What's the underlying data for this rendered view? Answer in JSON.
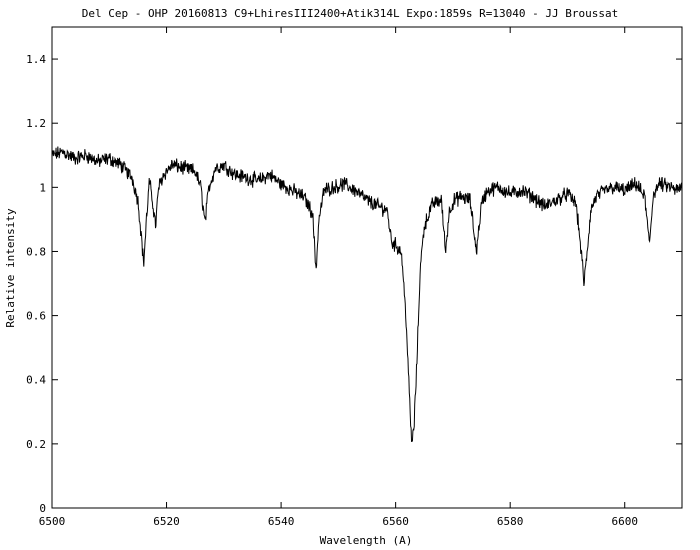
{
  "chart_data": {
    "type": "line",
    "title": "Del Cep -  OHP 20160813 C9+LhiresIII2400+Atik314L Expo:1859s R=13040  - JJ Broussat",
    "xlabel": "Wavelength (A)",
    "ylabel": "Relative intensity",
    "xlim": [
      6500,
      6610
    ],
    "ylim": [
      0,
      1.5
    ],
    "xticks": [
      "6500",
      "6520",
      "6540",
      "6560",
      "6580",
      "6600"
    ],
    "yticks": [
      "0",
      "0.2",
      "0.4",
      "0.6",
      "0.8",
      "1",
      "1.2",
      "1.4"
    ],
    "grid": false,
    "series": [
      {
        "color": "#000000",
        "x": [
          6500,
          6502,
          6504,
          6506,
          6508,
          6510,
          6512,
          6514,
          6515,
          6515.6,
          6516,
          6516.5,
          6517,
          6517.6,
          6518.1,
          6518.6,
          6519.5,
          6521,
          6523,
          6525,
          6526,
          6526.7,
          6527.4,
          6528.5,
          6530,
          6532,
          6534,
          6536,
          6538,
          6540,
          6542,
          6544,
          6545.5,
          6546.1,
          6546.6,
          6547.5,
          6549,
          6551,
          6553,
          6555,
          6557,
          6558.5,
          6559.3,
          6560,
          6561,
          6561.8,
          6562.4,
          6562.8,
          6563.2,
          6563.7,
          6564.3,
          6565,
          6566.5,
          6568,
          6568.7,
          6569.4,
          6570.3,
          6571.5,
          6573,
          6574.1,
          6575,
          6576,
          6578,
          6580,
          6582,
          6584,
          6586,
          6588,
          6590,
          6591.5,
          6592.4,
          6592.9,
          6593.4,
          6594.1,
          6595,
          6596.5,
          6598,
          6600,
          6602,
          6603.5,
          6604.3,
          6605,
          6606,
          6608,
          6609,
          6610
        ],
        "y": [
          1.1,
          1.11,
          1.09,
          1.1,
          1.08,
          1.09,
          1.07,
          1.03,
          0.96,
          0.85,
          0.76,
          0.9,
          1.02,
          0.95,
          0.88,
          1.0,
          1.04,
          1.07,
          1.06,
          1.05,
          1.0,
          0.89,
          1.0,
          1.06,
          1.07,
          1.04,
          1.03,
          1.02,
          1.04,
          1.01,
          0.99,
          0.97,
          0.92,
          0.74,
          0.9,
          0.99,
          1.0,
          1.01,
          0.99,
          0.96,
          0.94,
          0.93,
          0.83,
          0.82,
          0.8,
          0.6,
          0.35,
          0.2,
          0.25,
          0.45,
          0.75,
          0.88,
          0.95,
          0.96,
          0.8,
          0.93,
          0.96,
          0.97,
          0.96,
          0.8,
          0.95,
          0.99,
          1.0,
          0.98,
          0.99,
          0.97,
          0.94,
          0.96,
          0.98,
          0.95,
          0.8,
          0.7,
          0.79,
          0.93,
          0.97,
          0.99,
          1.0,
          0.99,
          1.01,
          0.97,
          0.82,
          0.98,
          1.01,
          1.0,
          0.99,
          1.0
        ]
      }
    ]
  }
}
